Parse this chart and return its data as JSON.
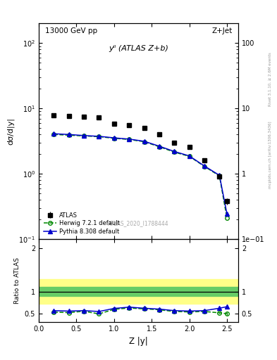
{
  "title_left": "13000 GeV pp",
  "title_right": "Z+Jet",
  "ylabel_main": "dσ/d|y|",
  "xlabel": "Z |y|",
  "ylabel_ratio": "Ratio to ATLAS",
  "annotation_main": "yˡˡ (ATLAS Z+b)",
  "watermark": "ATLAS_2020_I1788444",
  "side_text_top": "Rivet 3.1.10, ≥ 2.6M events",
  "side_text_bot": "mcplots.cern.ch [arXiv:1306.3436]",
  "atlas_x": [
    0.2,
    0.4,
    0.6,
    0.8,
    1.0,
    1.2,
    1.4,
    1.6,
    1.8,
    2.0,
    2.2,
    2.4,
    2.5
  ],
  "atlas_y": [
    7.8,
    7.6,
    7.5,
    7.3,
    5.8,
    5.5,
    5.0,
    4.0,
    3.0,
    2.6,
    1.6,
    0.9,
    0.38
  ],
  "atlas_yerr": [
    0.3,
    0.3,
    0.3,
    0.3,
    0.25,
    0.25,
    0.22,
    0.18,
    0.14,
    0.12,
    0.09,
    0.06,
    0.04
  ],
  "herwig_x": [
    0.2,
    0.4,
    0.6,
    0.8,
    1.0,
    1.2,
    1.4,
    1.6,
    1.8,
    2.0,
    2.2,
    2.4,
    2.5
  ],
  "herwig_y": [
    4.0,
    3.9,
    3.8,
    3.7,
    3.5,
    3.35,
    3.1,
    2.6,
    2.15,
    1.85,
    1.3,
    0.93,
    0.21
  ],
  "pythia_x": [
    0.2,
    0.4,
    0.6,
    0.8,
    1.0,
    1.2,
    1.4,
    1.6,
    1.8,
    2.0,
    2.2,
    2.4,
    2.5
  ],
  "pythia_y": [
    4.1,
    4.0,
    3.85,
    3.75,
    3.55,
    3.4,
    3.15,
    2.65,
    2.2,
    1.88,
    1.32,
    0.95,
    0.245
  ],
  "herwig_ratio_x": [
    0.2,
    0.4,
    0.6,
    0.8,
    1.0,
    1.2,
    1.4,
    1.6,
    1.8,
    2.0,
    2.2,
    2.4,
    2.5
  ],
  "herwig_ratio_y": [
    0.53,
    0.52,
    0.55,
    0.49,
    0.595,
    0.625,
    0.605,
    0.585,
    0.545,
    0.535,
    0.545,
    0.515,
    0.495
  ],
  "herwig_ratio_yerr": [
    0.015,
    0.015,
    0.015,
    0.015,
    0.015,
    0.015,
    0.015,
    0.015,
    0.015,
    0.015,
    0.015,
    0.02,
    0.03
  ],
  "pythia_ratio_x": [
    0.2,
    0.4,
    0.6,
    0.8,
    1.0,
    1.2,
    1.4,
    1.6,
    1.8,
    2.0,
    2.2,
    2.4,
    2.5
  ],
  "pythia_ratio_y": [
    0.565,
    0.555,
    0.565,
    0.545,
    0.615,
    0.645,
    0.62,
    0.6,
    0.565,
    0.555,
    0.565,
    0.62,
    0.655
  ],
  "pythia_ratio_yerr": [
    0.015,
    0.015,
    0.015,
    0.015,
    0.015,
    0.015,
    0.015,
    0.015,
    0.015,
    0.015,
    0.015,
    0.025,
    0.045
  ],
  "band_yellow_low": 0.72,
  "band_yellow_high": 1.28,
  "band_green_low": 0.895,
  "band_green_high": 1.115,
  "xlim": [
    0.0,
    2.65
  ],
  "ylim_main": [
    0.1,
    200
  ],
  "ylim_ratio": [
    0.3,
    2.2
  ],
  "ratio_yticks": [
    0.5,
    1.0,
    2.0
  ],
  "color_atlas": "#000000",
  "color_herwig": "#008800",
  "color_pythia": "#0000cc",
  "color_band_green": "#66cc66",
  "color_band_yellow": "#ffff88",
  "bg_color": "#ffffff"
}
